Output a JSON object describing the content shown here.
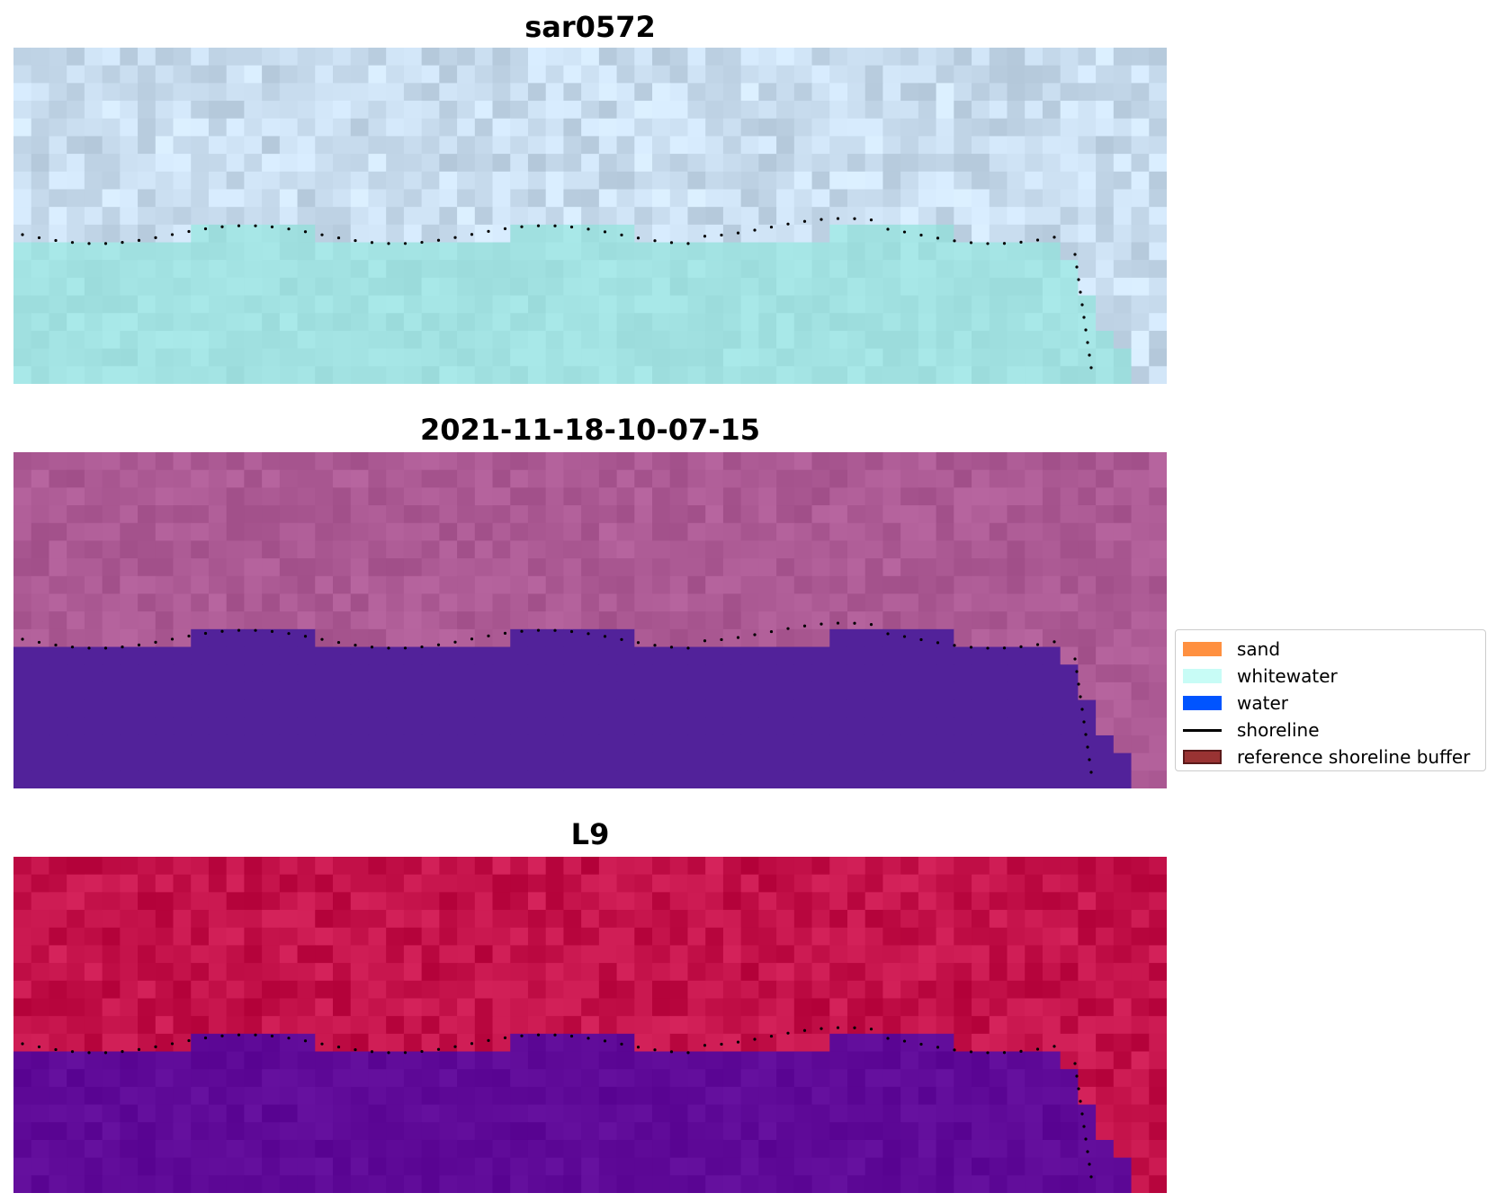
{
  "panels": [
    {
      "title": "sar0572",
      "style": "sar"
    },
    {
      "title": "2021-11-18-10-07-15",
      "style": "classified"
    },
    {
      "title": "L9",
      "style": "falsecolor"
    }
  ],
  "legend": {
    "items": [
      {
        "label": "sand",
        "type": "patch",
        "color": "#ff9040",
        "border": "#ff9040"
      },
      {
        "label": "whitewater",
        "type": "patch",
        "color": "#c8fcf6",
        "border": "#c8fcf6"
      },
      {
        "label": "water",
        "type": "patch",
        "color": "#0054ff",
        "border": "#0054ff"
      },
      {
        "label": "shoreline",
        "type": "line",
        "color": "#000000"
      },
      {
        "label": "reference shoreline buffer",
        "type": "patch",
        "color": "#993333",
        "border": "#5a1a1a"
      }
    ]
  },
  "colors": {
    "sar_land": "#c8dcee",
    "sar_water": "#a2e2e2",
    "classified_water": "#52229a",
    "classified_land": "#ac5a94",
    "falsecolor_land": "#c4124a",
    "falsecolor_water": "#5f0a98",
    "shoreline_dots": "#000000"
  }
}
